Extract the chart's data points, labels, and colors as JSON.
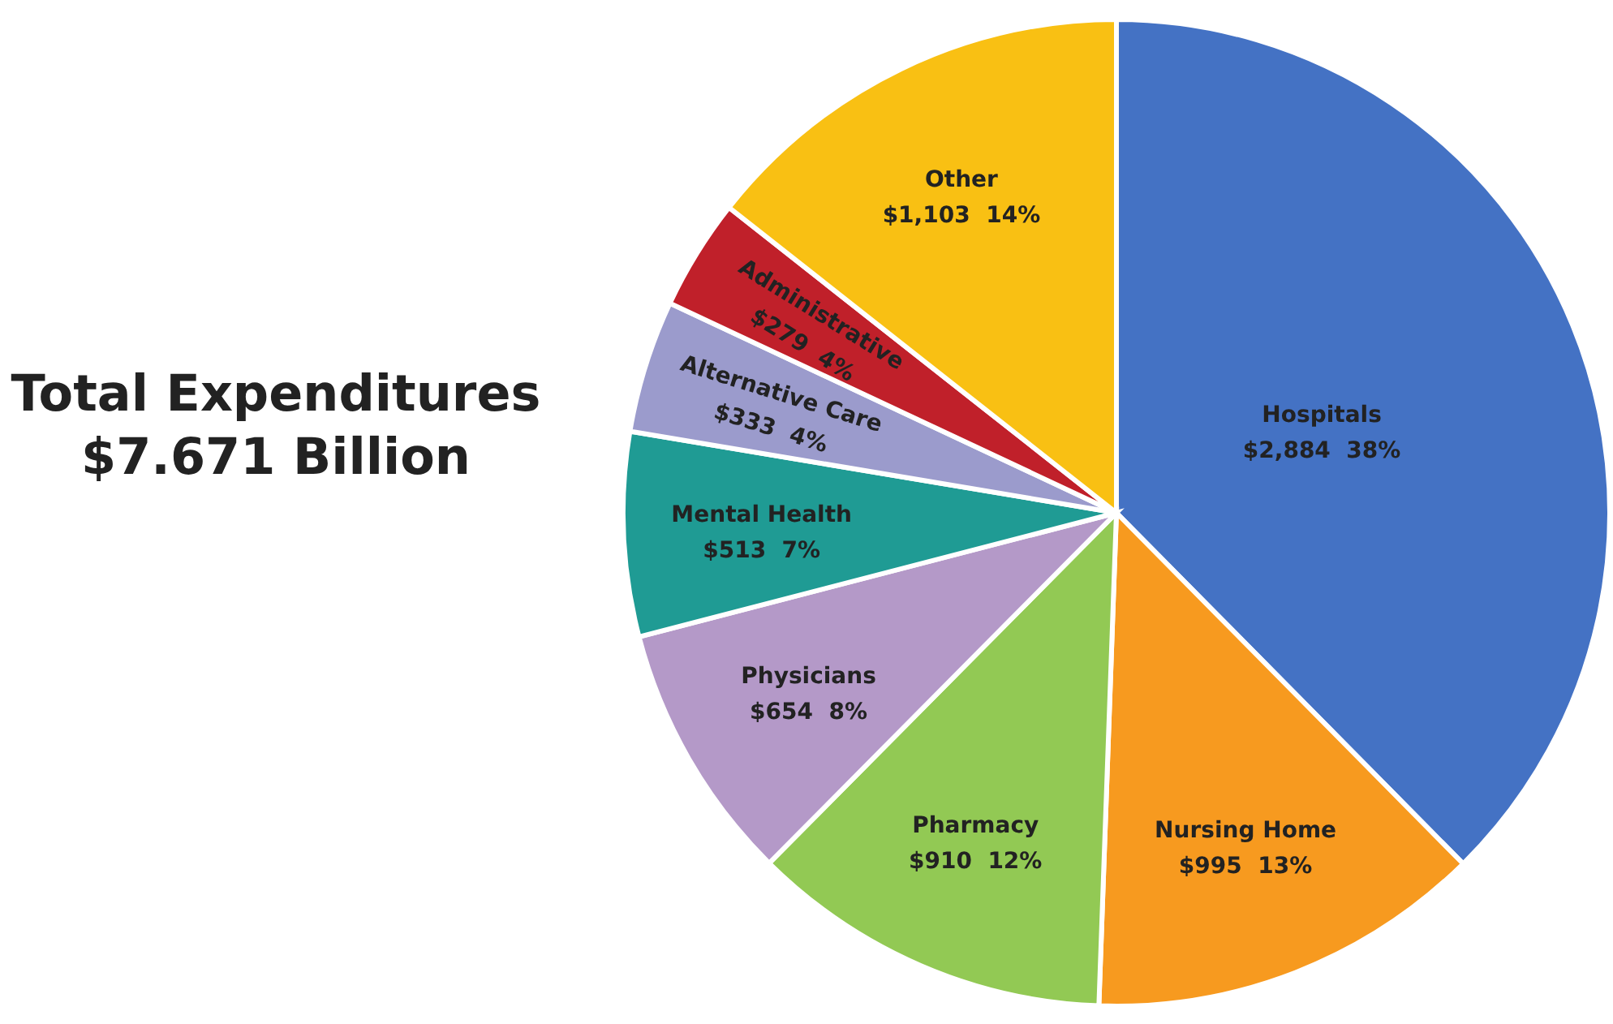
{
  "chart_data": {
    "type": "pie",
    "title": "Total Expenditures",
    "subtitle": "$7.671 Billion",
    "categories": [
      "Hospitals",
      "Nursing Home",
      "Pharmacy",
      "Physicians",
      "Mental Health",
      "Alternative Care",
      "Administrative",
      "Other"
    ],
    "values": [
      2884,
      995,
      910,
      654,
      513,
      333,
      279,
      1103
    ],
    "value_labels": [
      "$2,884  38%",
      "$995  13%",
      "$910  12%",
      "$654  8%",
      "$513  7%",
      "$333  4%",
      "$279  4%",
      "$1,103  14%"
    ],
    "colors": [
      "#4472c4",
      "#f79a1f",
      "#92c954",
      "#b499c8",
      "#1f9b94",
      "#9b9bcc",
      "#c0202a",
      "#f9c013"
    ]
  }
}
